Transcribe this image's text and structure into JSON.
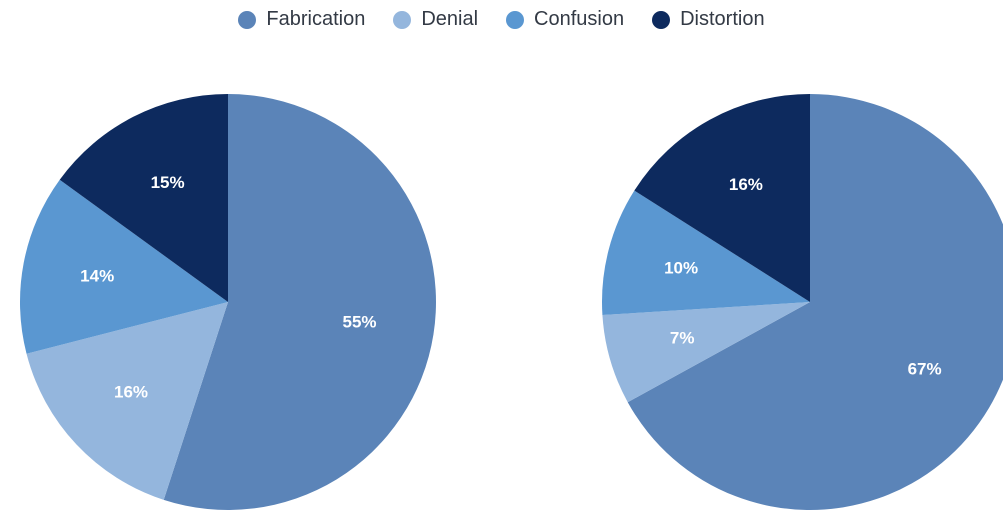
{
  "legend": [
    {
      "label": "Fabrication",
      "color": "#5b84b8"
    },
    {
      "label": "Denial",
      "color": "#94b6dd"
    },
    {
      "label": "Confusion",
      "color": "#5a97d1"
    },
    {
      "label": "Distortion",
      "color": "#0d2a5e"
    }
  ],
  "chart_data": [
    {
      "type": "pie",
      "categories": [
        "Fabrication",
        "Denial",
        "Confusion",
        "Distortion"
      ],
      "values": [
        55,
        16,
        14,
        15
      ],
      "labels": [
        "55%",
        "16%",
        "14%",
        "15%"
      ],
      "title": "",
      "legend": "top-center"
    },
    {
      "type": "pie",
      "categories": [
        "Fabrication",
        "Denial",
        "Confusion",
        "Distortion"
      ],
      "values": [
        67,
        7,
        10,
        16
      ],
      "labels": [
        "67%",
        "7%",
        "10%",
        "16%"
      ],
      "title": "",
      "legend": "top-center"
    }
  ]
}
